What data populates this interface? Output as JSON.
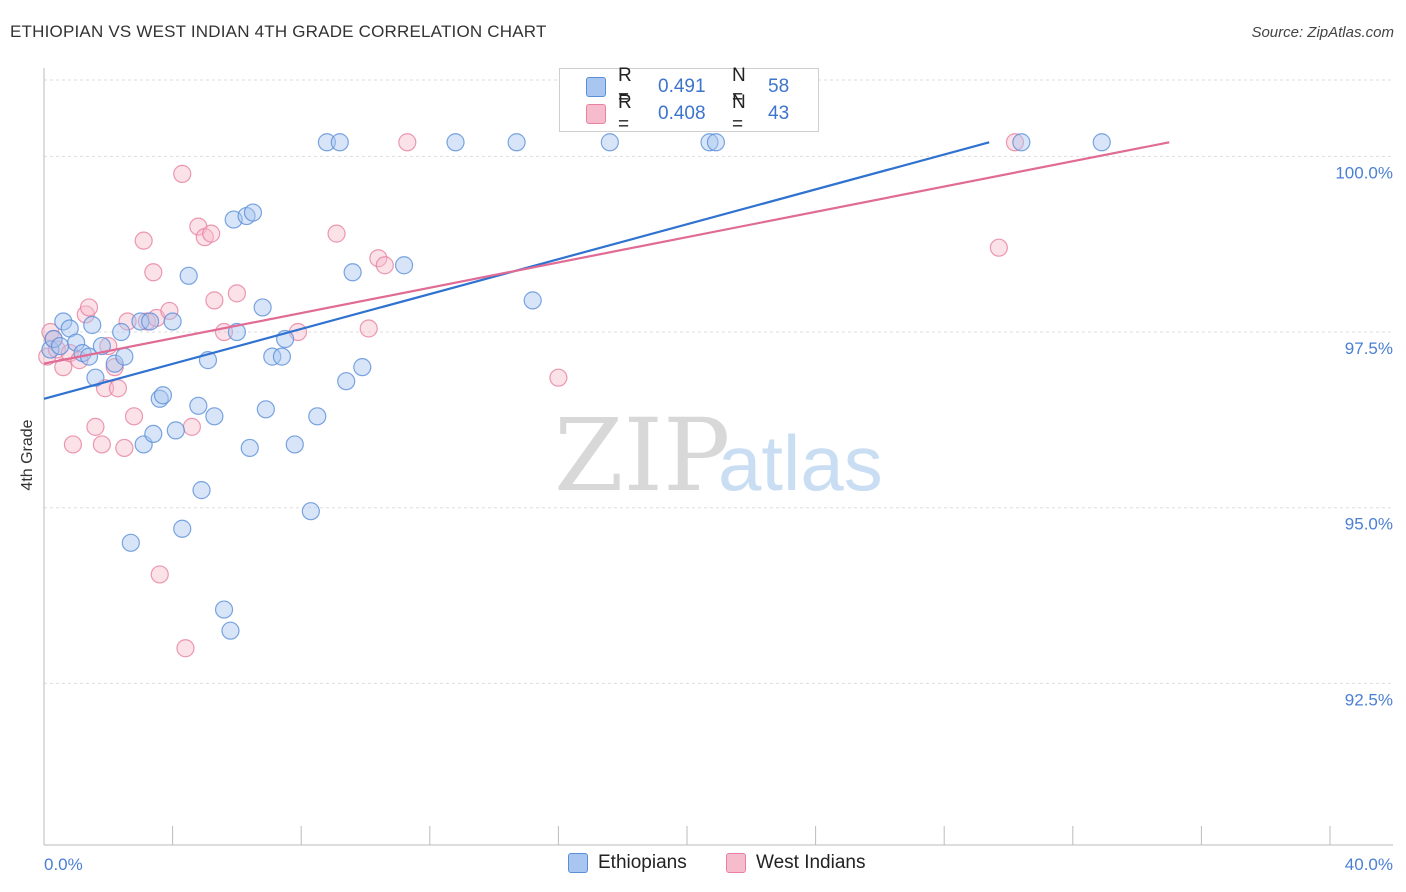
{
  "header": {
    "title": "ETHIOPIAN VS WEST INDIAN 4TH GRADE CORRELATION CHART",
    "source": "Source: ZipAtlas.com"
  },
  "watermark": {
    "zip": "ZIP",
    "atlas": "atlas"
  },
  "legend": {
    "rows": [
      {
        "r_label": "R =",
        "r_value": "0.491",
        "n_label": "N =",
        "n_value": "58"
      },
      {
        "r_label": "R =",
        "r_value": "0.408",
        "n_label": "N =",
        "n_value": "43"
      }
    ]
  },
  "bottom_legend": {
    "series1": "Ethiopians",
    "series2": "West Indians"
  },
  "colors": {
    "ethiopians_fill": "#a9c6f0",
    "ethiopians_stroke": "#5a8fd8",
    "ethiopians_line": "#2f72cf",
    "westindians_fill": "#f6bccd",
    "westindians_stroke": "#e6819f",
    "westindians_line": "#e06b95",
    "tick_text": "#4a7fd4",
    "grid": "#dddddd"
  },
  "chart_data": {
    "type": "scatter",
    "title": "ETHIOPIAN VS WEST INDIAN 4TH GRADE CORRELATION CHART",
    "xlabel": "",
    "ylabel": "4th Grade",
    "xlim": [
      0,
      40
    ],
    "ylim": [
      90.2,
      101.2
    ],
    "x_tick_labels": [
      "0.0%",
      "40.0%"
    ],
    "y_ticks": [
      92.5,
      95.0,
      97.5,
      100.0
    ],
    "y_tick_labels": [
      "92.5%",
      "95.0%",
      "97.5%",
      "100.0%"
    ],
    "grid": true,
    "legend_position": "top-center",
    "series": [
      {
        "name": "Ethiopians",
        "R": 0.491,
        "N": 58,
        "trend": {
          "x": [
            0,
            29.4
          ],
          "y": [
            96.55,
            100.2
          ]
        },
        "points": [
          [
            0.2,
            97.25
          ],
          [
            0.3,
            97.4
          ],
          [
            0.5,
            97.3
          ],
          [
            0.6,
            97.65
          ],
          [
            0.8,
            97.55
          ],
          [
            1.0,
            97.35
          ],
          [
            1.2,
            97.2
          ],
          [
            1.4,
            97.15
          ],
          [
            1.5,
            97.6
          ],
          [
            1.6,
            96.85
          ],
          [
            1.8,
            97.3
          ],
          [
            2.2,
            97.05
          ],
          [
            2.4,
            97.5
          ],
          [
            2.5,
            97.15
          ],
          [
            2.7,
            94.5
          ],
          [
            3.0,
            97.65
          ],
          [
            3.1,
            95.9
          ],
          [
            3.3,
            97.65
          ],
          [
            3.4,
            96.05
          ],
          [
            3.6,
            96.55
          ],
          [
            3.7,
            96.6
          ],
          [
            4.0,
            97.65
          ],
          [
            4.1,
            96.1
          ],
          [
            4.3,
            94.7
          ],
          [
            4.5,
            98.3
          ],
          [
            4.8,
            96.45
          ],
          [
            4.9,
            95.25
          ],
          [
            5.1,
            97.1
          ],
          [
            5.3,
            96.3
          ],
          [
            5.6,
            93.55
          ],
          [
            5.8,
            93.25
          ],
          [
            5.9,
            99.1
          ],
          [
            6.0,
            97.5
          ],
          [
            6.3,
            99.15
          ],
          [
            6.5,
            99.2
          ],
          [
            6.4,
            95.85
          ],
          [
            6.8,
            97.85
          ],
          [
            6.9,
            96.4
          ],
          [
            7.1,
            97.15
          ],
          [
            7.4,
            97.15
          ],
          [
            7.5,
            97.4
          ],
          [
            7.8,
            95.9
          ],
          [
            8.3,
            94.95
          ],
          [
            8.5,
            96.3
          ],
          [
            8.8,
            100.2
          ],
          [
            9.2,
            100.2
          ],
          [
            9.4,
            96.8
          ],
          [
            9.6,
            98.35
          ],
          [
            9.9,
            97.0
          ],
          [
            11.2,
            98.45
          ],
          [
            12.8,
            100.2
          ],
          [
            14.7,
            100.2
          ],
          [
            15.2,
            97.95
          ],
          [
            17.6,
            100.2
          ],
          [
            20.7,
            100.2
          ],
          [
            20.9,
            100.2
          ],
          [
            30.4,
            100.2
          ],
          [
            32.9,
            100.2
          ]
        ]
      },
      {
        "name": "West Indians",
        "R": 0.408,
        "N": 43,
        "trend": {
          "x": [
            0,
            35.0
          ],
          "y": [
            97.05,
            100.2
          ]
        },
        "points": [
          [
            0.1,
            97.15
          ],
          [
            0.2,
            97.5
          ],
          [
            0.3,
            97.4
          ],
          [
            0.4,
            97.25
          ],
          [
            0.6,
            97.0
          ],
          [
            0.8,
            97.2
          ],
          [
            0.9,
            95.9
          ],
          [
            1.1,
            97.1
          ],
          [
            1.3,
            97.75
          ],
          [
            1.4,
            97.85
          ],
          [
            1.6,
            96.15
          ],
          [
            1.8,
            95.9
          ],
          [
            1.9,
            96.7
          ],
          [
            2.0,
            97.3
          ],
          [
            2.2,
            97.0
          ],
          [
            2.3,
            96.7
          ],
          [
            2.5,
            95.85
          ],
          [
            2.6,
            97.65
          ],
          [
            2.8,
            96.3
          ],
          [
            3.2,
            97.65
          ],
          [
            3.1,
            98.8
          ],
          [
            3.4,
            98.35
          ],
          [
            3.5,
            97.7
          ],
          [
            3.6,
            94.05
          ],
          [
            3.9,
            97.8
          ],
          [
            4.3,
            99.75
          ],
          [
            4.4,
            93.0
          ],
          [
            4.6,
            96.15
          ],
          [
            4.8,
            99.0
          ],
          [
            5.0,
            98.85
          ],
          [
            5.2,
            98.9
          ],
          [
            5.3,
            97.95
          ],
          [
            5.6,
            97.5
          ],
          [
            6.0,
            98.05
          ],
          [
            7.9,
            97.5
          ],
          [
            9.1,
            98.9
          ],
          [
            10.1,
            97.55
          ],
          [
            10.4,
            98.55
          ],
          [
            10.6,
            98.45
          ],
          [
            11.3,
            100.2
          ],
          [
            16.0,
            96.85
          ],
          [
            29.7,
            98.7
          ],
          [
            30.2,
            100.2
          ]
        ]
      }
    ]
  }
}
